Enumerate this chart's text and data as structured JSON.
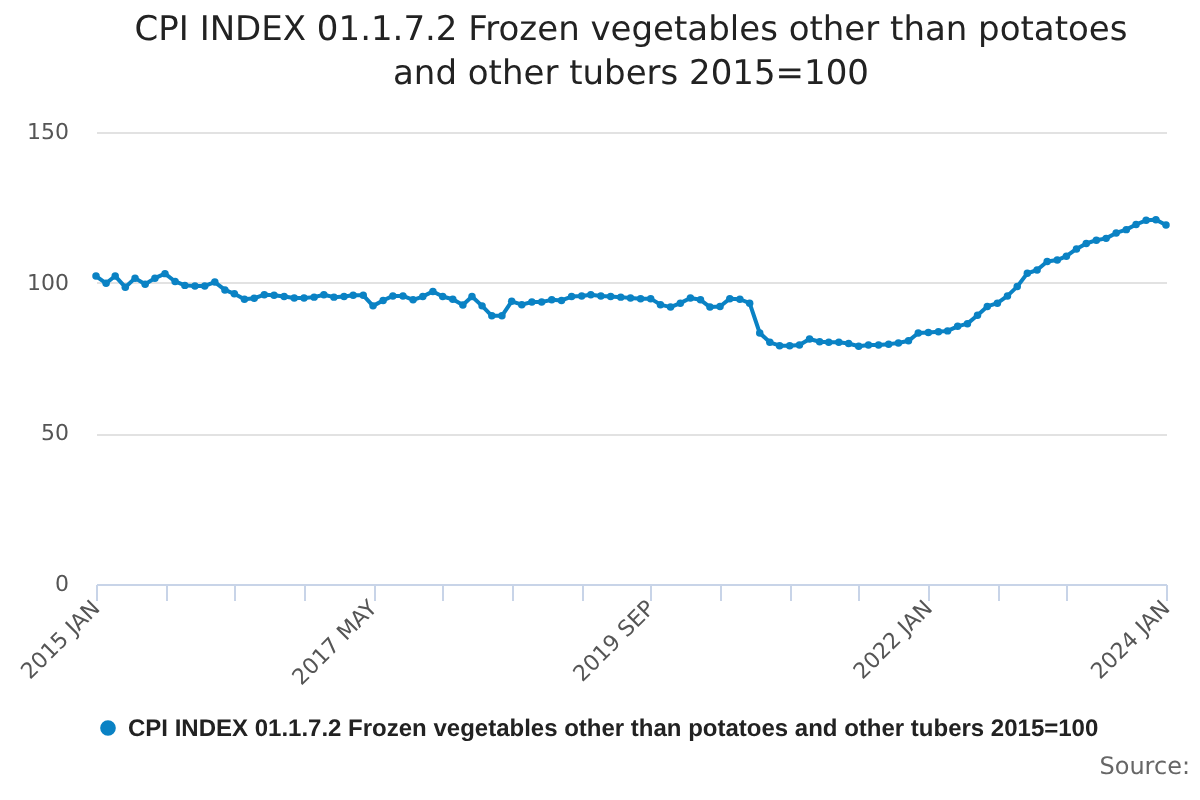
{
  "chart_data": {
    "type": "line",
    "title": "CPI INDEX 01.1.7.2 Frozen vegetables other than potatoes and other tubers 2015=100",
    "x": [
      "2015-01",
      "2015-02",
      "2015-03",
      "2015-04",
      "2015-05",
      "2015-06",
      "2015-07",
      "2015-08",
      "2015-09",
      "2015-10",
      "2015-11",
      "2015-12",
      "2016-01",
      "2016-02",
      "2016-03",
      "2016-04",
      "2016-05",
      "2016-06",
      "2016-07",
      "2016-08",
      "2016-09",
      "2016-10",
      "2016-11",
      "2016-12",
      "2017-01",
      "2017-02",
      "2017-03",
      "2017-04",
      "2017-05",
      "2017-06",
      "2017-07",
      "2017-08",
      "2017-09",
      "2017-10",
      "2017-11",
      "2017-12",
      "2018-01",
      "2018-02",
      "2018-03",
      "2018-04",
      "2018-05",
      "2018-06",
      "2018-07",
      "2018-08",
      "2018-09",
      "2018-10",
      "2018-11",
      "2018-12",
      "2019-01",
      "2019-02",
      "2019-03",
      "2019-04",
      "2019-05",
      "2019-06",
      "2019-07",
      "2019-08",
      "2019-09",
      "2019-10",
      "2019-11",
      "2019-12",
      "2020-01",
      "2020-02",
      "2020-03",
      "2020-04",
      "2020-05",
      "2020-06",
      "2020-07",
      "2020-08",
      "2020-09",
      "2020-10",
      "2020-11",
      "2020-12",
      "2021-01",
      "2021-02",
      "2021-03",
      "2021-04",
      "2021-05",
      "2021-06",
      "2021-07",
      "2021-08",
      "2021-09",
      "2021-10",
      "2021-11",
      "2021-12",
      "2022-01",
      "2022-02",
      "2022-03",
      "2022-04",
      "2022-05",
      "2022-06",
      "2022-07",
      "2022-08",
      "2022-09",
      "2022-10",
      "2022-11",
      "2022-12",
      "2023-01",
      "2023-02",
      "2023-03",
      "2023-04",
      "2023-05",
      "2023-06",
      "2023-07",
      "2023-08",
      "2023-09",
      "2023-10",
      "2023-11",
      "2023-12",
      "2024-01"
    ],
    "series": [
      {
        "name": "CPI INDEX 01.1.7.2 Frozen vegetables other than potatoes and other tubers 2015=100",
        "color": "#0a82c4",
        "values": [
          102.2,
          99.8,
          102.2,
          98.5,
          101.5,
          99.5,
          101.5,
          103,
          100.4,
          99.1,
          98.9,
          98.9,
          100.2,
          97.6,
          96.3,
          94.5,
          94.8,
          96,
          95.8,
          95.4,
          94.9,
          94.9,
          95.2,
          96,
          95.2,
          95.4,
          95.8,
          95.8,
          92.3,
          94.1,
          95.6,
          95.6,
          94.3,
          95.4,
          97.1,
          95.4,
          94.5,
          92.6,
          95.4,
          92.3,
          89,
          89,
          93.8,
          92.7,
          93.6,
          93.6,
          94.3,
          94.1,
          95.4,
          95.6,
          96,
          95.6,
          95.4,
          95.2,
          94.9,
          94.7,
          94.7,
          92.7,
          91.9,
          93.2,
          94.9,
          94.3,
          91.9,
          92.1,
          94.7,
          94.5,
          93.2,
          83.3,
          80.2,
          79.1,
          79.1,
          79.3,
          81.3,
          80.4,
          80.2,
          80.2,
          79.8,
          78.9,
          79.3,
          79.3,
          79.6,
          80,
          80.7,
          83.3,
          83.5,
          83.7,
          84,
          85.5,
          86.4,
          89.2,
          92.1,
          93.2,
          95.6,
          98.7,
          103.1,
          104.2,
          107,
          107.5,
          108.8,
          111.2,
          113,
          114.1,
          114.7,
          116.5,
          117.6,
          119.3,
          120.7,
          120.9,
          119.1
        ]
      }
    ],
    "xlim": [
      "2015-01",
      "2024-01"
    ],
    "xticks": [
      {
        "value": "2015-01",
        "label": "2015 JAN"
      },
      {
        "value": "2015-08",
        "label": null
      },
      {
        "value": "2016-03",
        "label": null
      },
      {
        "value": "2016-10",
        "label": null
      },
      {
        "value": "2017-05",
        "label": "2017 MAY"
      },
      {
        "value": "2017-12",
        "label": null
      },
      {
        "value": "2018-07",
        "label": null
      },
      {
        "value": "2019-02",
        "label": null
      },
      {
        "value": "2019-09",
        "label": "2019 SEP"
      },
      {
        "value": "2020-04",
        "label": null
      },
      {
        "value": "2020-11",
        "label": null
      },
      {
        "value": "2021-06",
        "label": null
      },
      {
        "value": "2022-01",
        "label": "2022 JAN"
      },
      {
        "value": "2022-08",
        "label": null
      },
      {
        "value": "2023-03",
        "label": null
      },
      {
        "value": "2024-01",
        "label": "2024 JAN"
      }
    ],
    "ylim": [
      0,
      150
    ],
    "yticks": [
      0,
      50,
      100,
      150
    ],
    "grid": "y",
    "legend": "bottom",
    "marker": "circle",
    "line_style": "solid",
    "annotations": [
      "Source:"
    ]
  }
}
